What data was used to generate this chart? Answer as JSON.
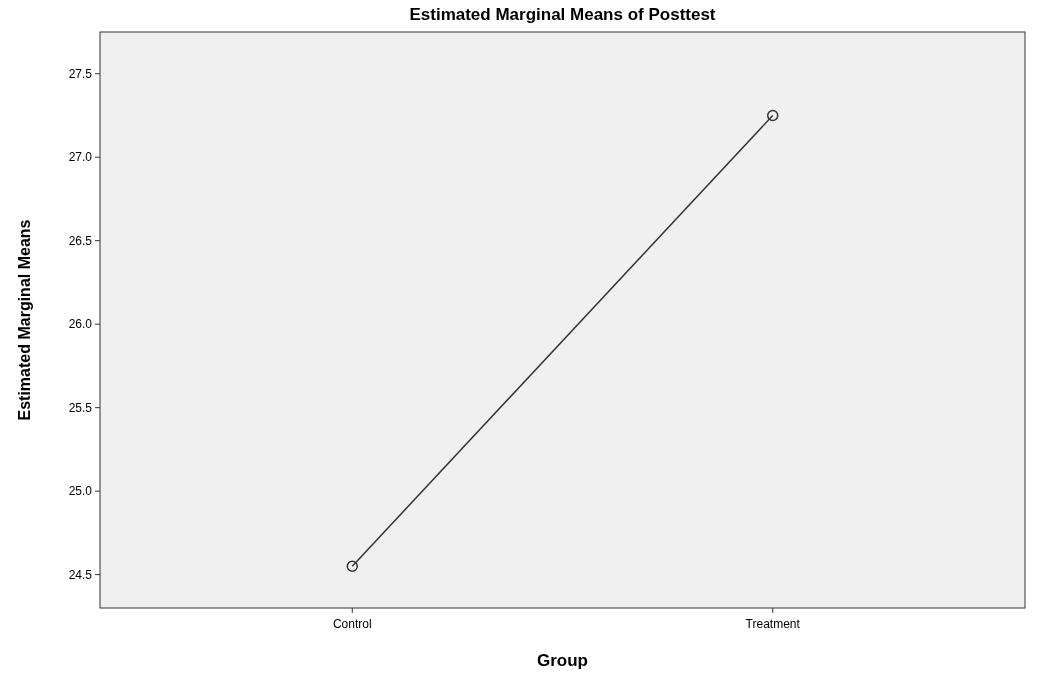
{
  "chart_data": {
    "type": "line",
    "title": "Estimated Marginal Means of Posttest",
    "xlabel": "Group",
    "ylabel": "Estimated Marginal Means",
    "categories": [
      "Control",
      "Treatment"
    ],
    "series": [
      {
        "color": "#333333",
        "values": [
          24.55,
          27.25
        ]
      }
    ],
    "ylim": [
      24.3,
      27.75
    ],
    "yticks": [
      24.5,
      {
        "value": 25,
        "label": "25.0"
      },
      25.5,
      {
        "value": 26,
        "label": "26.0"
      },
      26.5,
      {
        "value": 27,
        "label": "27.0"
      },
      27.5
    ],
    "marker": "circle",
    "grid": false
  }
}
